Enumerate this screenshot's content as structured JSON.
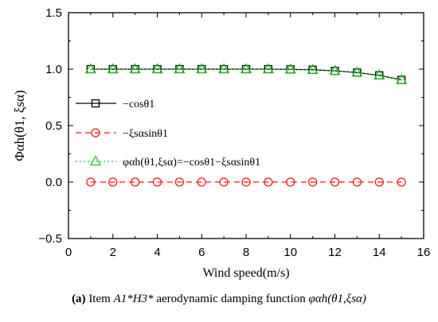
{
  "chart_data": {
    "type": "line",
    "xlabel": "Wind speed(m/s)",
    "ylabel": "Φαh(θ1, ξsα)",
    "xlim": [
      0,
      16
    ],
    "ylim": [
      -0.5,
      1.5
    ],
    "xticks": [
      0,
      2,
      4,
      6,
      8,
      10,
      12,
      14,
      16
    ],
    "yticks": [
      -0.5,
      0.0,
      0.5,
      1.0,
      1.5
    ],
    "xtick_labels": [
      "0",
      "2",
      "4",
      "6",
      "8",
      "10",
      "12",
      "14",
      "16"
    ],
    "ytick_labels": [
      "−0.5",
      "0.0",
      "0.5",
      "1.0",
      "1.5"
    ],
    "grid": false,
    "legend_position": "center-left",
    "x": [
      1,
      2,
      3,
      4,
      5,
      6,
      7,
      8,
      9,
      10,
      11,
      12,
      13,
      14,
      15
    ],
    "series": [
      {
        "name": "−cosθ1",
        "marker": "square",
        "line": "solid",
        "color": "#000000",
        "values": [
          1.0,
          1.0,
          1.0,
          1.0,
          1.0,
          1.0,
          1.0,
          1.0,
          1.0,
          0.998,
          0.995,
          0.985,
          0.97,
          0.945,
          0.905
        ]
      },
      {
        "name": "−ξsαsinθ1",
        "marker": "circle",
        "line": "dashed",
        "color": "#ee1c1c",
        "values": [
          0.0,
          0.0,
          0.0,
          0.0,
          0.0,
          0.0,
          0.0,
          0.0,
          0.0,
          0.0,
          0.0,
          0.0,
          0.0,
          0.0,
          0.0
        ]
      },
      {
        "name": "φαh(θ1,ξsα)=−cosθ1−ξsαsinθ1",
        "marker": "triangle",
        "line": "dotted",
        "color": "#22c322",
        "values": [
          1.0,
          1.0,
          1.0,
          1.0,
          1.0,
          1.0,
          1.0,
          1.0,
          1.0,
          0.998,
          0.995,
          0.985,
          0.97,
          0.945,
          0.905
        ]
      }
    ]
  },
  "caption": {
    "label": "(a)",
    "text1": " Item ",
    "term": "A1*H3*",
    "text2": " aerodynamic damping function ",
    "func": "φαh(θ1,ξsα)"
  }
}
